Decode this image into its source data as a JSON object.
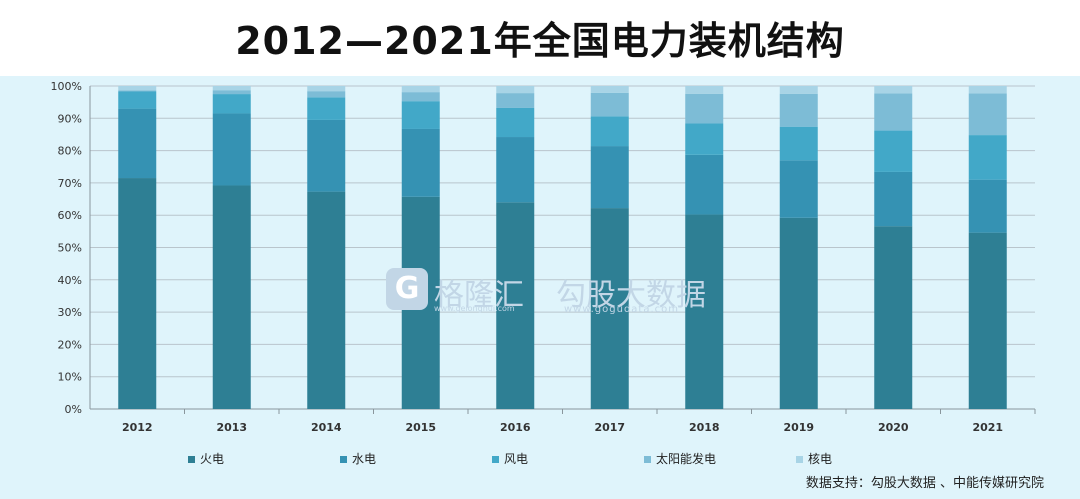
{
  "title": "2012—2021年全国电力装机结构",
  "watermark": {
    "brand1": "格隆汇",
    "brand1_url": "www.gelonghui.com",
    "brand2": "勾股大数据",
    "brand2_url": "www.gogudata.com"
  },
  "source": "数据支持：勾股大数据 、中能传媒研究院",
  "chart_data": {
    "type": "bar",
    "stacked": true,
    "categories": [
      "2012",
      "2013",
      "2014",
      "2015",
      "2016",
      "2017",
      "2018",
      "2019",
      "2020",
      "2021"
    ],
    "ylim": [
      0,
      100
    ],
    "yticks": [
      "0%",
      "10%",
      "20%",
      "30%",
      "40%",
      "50%",
      "60%",
      "70%",
      "80%",
      "90%",
      "100%"
    ],
    "legend_position": "bottom",
    "series": [
      {
        "name": "火电",
        "color": "#2e7f94",
        "values": [
          71.5,
          69.2,
          67.3,
          65.7,
          64.0,
          62.2,
          60.2,
          59.2,
          56.6,
          54.6
        ]
      },
      {
        "name": "水电",
        "color": "#3592b3",
        "values": [
          21.5,
          22.3,
          22.2,
          21.0,
          20.2,
          19.2,
          18.5,
          17.8,
          16.8,
          16.4
        ]
      },
      {
        "name": "风电",
        "color": "#42a8c8",
        "values": [
          5.3,
          6.0,
          7.0,
          8.6,
          9.0,
          9.2,
          9.7,
          10.4,
          12.8,
          13.8
        ]
      },
      {
        "name": "太阳能发电",
        "color": "#7dbcd6",
        "values": [
          0.3,
          1.2,
          1.9,
          2.8,
          4.6,
          7.3,
          9.2,
          10.2,
          11.5,
          12.9
        ]
      },
      {
        "name": "核电",
        "color": "#a8d4e6",
        "values": [
          1.4,
          1.3,
          1.6,
          1.9,
          2.2,
          2.1,
          2.4,
          2.4,
          2.3,
          2.3
        ]
      }
    ]
  }
}
